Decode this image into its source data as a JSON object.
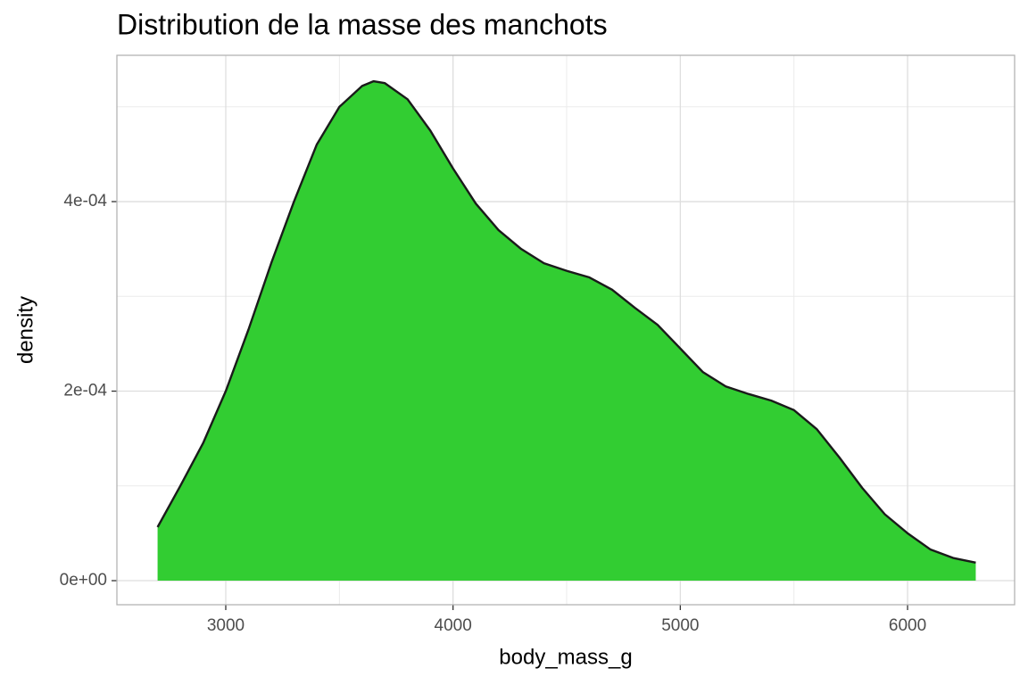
{
  "chart_data": {
    "type": "density",
    "title": "Distribution de la masse des manchots",
    "x_label": "body_mass_g",
    "y_label": "density",
    "x": [
      2700,
      2800,
      2900,
      3000,
      3100,
      3200,
      3300,
      3400,
      3500,
      3600,
      3650,
      3700,
      3800,
      3900,
      4000,
      4100,
      4200,
      4300,
      4400,
      4500,
      4600,
      4700,
      4800,
      4900,
      5000,
      5100,
      5200,
      5300,
      5400,
      5500,
      5600,
      5700,
      5800,
      5900,
      6000,
      6100,
      6200,
      6300
    ],
    "values": [
      5.65e-05,
      0.0001,
      0.000145,
      0.0002,
      0.000265,
      0.000335,
      0.0004,
      0.00046,
      0.0005,
      0.000522,
      0.000527,
      0.000525,
      0.000508,
      0.000475,
      0.000435,
      0.000398,
      0.00037,
      0.00035,
      0.000335,
      0.000327,
      0.00032,
      0.000307,
      0.000288,
      0.00027,
      0.000245,
      0.00022,
      0.000205,
      0.000197,
      0.00019,
      0.00018,
      0.00016,
      0.00013,
      9.8e-05,
      7e-05,
      5e-05,
      3.3e-05,
      2.4e-05,
      1.9e-05
    ],
    "color": "#32cd32",
    "line_color": "#1a1a1a",
    "xlim": [
      2521,
      6471
    ],
    "ylim": [
      -2.54e-05,
      0.0005544
    ],
    "xticks": [
      3000,
      4000,
      5000,
      6000
    ],
    "yticks": [
      {
        "value": 0,
        "label": "0e+00"
      },
      {
        "value": 0.0002,
        "label": "2e-04"
      },
      {
        "value": 0.0004,
        "label": "4e-04"
      }
    ],
    "x_minor_ticks": [
      3500,
      4500,
      5500
    ],
    "y_minor_ticks": [
      0.0001,
      0.0003,
      0.0005
    ],
    "grid": true
  }
}
